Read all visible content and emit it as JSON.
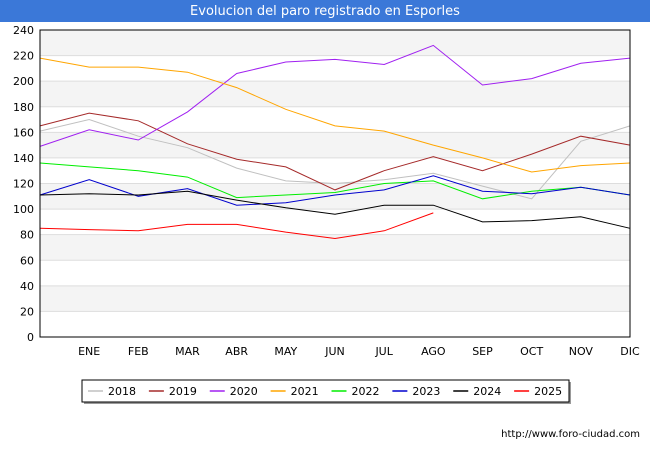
{
  "header": {
    "title": "Evolucion del paro registrado en Esporles"
  },
  "footer": {
    "url": "http://www.foro-ciudad.com"
  },
  "chart_data": {
    "type": "line",
    "title": "Evolucion del paro registrado en Esporles",
    "xlabel": "",
    "ylabel": "",
    "ylim": [
      0,
      240
    ],
    "yticks": [
      0,
      20,
      40,
      60,
      80,
      100,
      120,
      140,
      160,
      180,
      200,
      220,
      240
    ],
    "categories": [
      "",
      "ENE",
      "FEB",
      "MAR",
      "ABR",
      "MAY",
      "JUN",
      "JUL",
      "AGO",
      "SEP",
      "OCT",
      "NOV",
      "DIC"
    ],
    "grid": "horizontal bands",
    "legend_position": "bottom",
    "series": [
      {
        "name": "2018",
        "color": "#c0c0c0",
        "values": [
          161,
          170,
          157,
          148,
          132,
          122,
          120,
          123,
          128,
          118,
          108,
          153,
          165
        ]
      },
      {
        "name": "2019",
        "color": "#a52a2a",
        "values": [
          165,
          175,
          169,
          151,
          139,
          133,
          115,
          130,
          141,
          130,
          143,
          157,
          150
        ]
      },
      {
        "name": "2020",
        "color": "#a020f0",
        "values": [
          149,
          162,
          154,
          176,
          206,
          215,
          217,
          213,
          228,
          197,
          202,
          214,
          218
        ]
      },
      {
        "name": "2021",
        "color": "#ffa500",
        "values": [
          218,
          211,
          211,
          207,
          195,
          178,
          165,
          161,
          150,
          140,
          129,
          134,
          136
        ]
      },
      {
        "name": "2022",
        "color": "#00ee00",
        "values": [
          136,
          133,
          130,
          125,
          109,
          111,
          113,
          120,
          122,
          108,
          114,
          117,
          111
        ]
      },
      {
        "name": "2023",
        "color": "#0000cd",
        "values": [
          111,
          123,
          110,
          116,
          103,
          105,
          111,
          115,
          126,
          114,
          112,
          117,
          111
        ]
      },
      {
        "name": "2024",
        "color": "#000000",
        "values": [
          111,
          112,
          111,
          114,
          107,
          101,
          96,
          103,
          103,
          90,
          91,
          94,
          85
        ]
      },
      {
        "name": "2025",
        "color": "#ff0000",
        "values": [
          85,
          84,
          83,
          88,
          88,
          82,
          77,
          83,
          97,
          null,
          null,
          null,
          null
        ]
      }
    ]
  }
}
